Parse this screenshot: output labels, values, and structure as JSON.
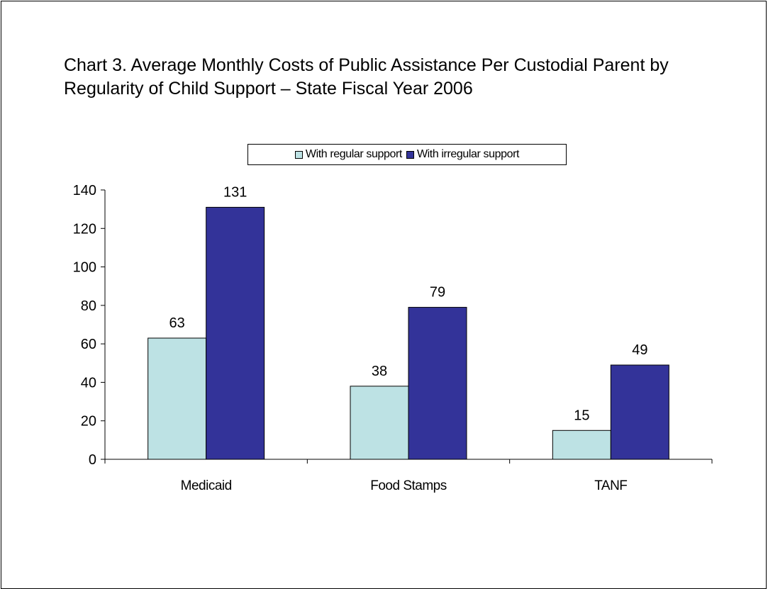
{
  "chart_data": {
    "type": "bar",
    "title": "Chart 3. Average Monthly Costs of Public Assistance Per Custodial Parent by Regularity of Child Support – State Fiscal Year 2006",
    "categories": [
      "Medicaid",
      "Food Stamps",
      "TANF"
    ],
    "series": [
      {
        "name": "With regular support",
        "values": [
          63,
          38,
          15
        ],
        "color": "#bde2e4"
      },
      {
        "name": "With irregular support",
        "values": [
          131,
          79,
          49
        ],
        "color": "#333399"
      }
    ],
    "xlabel": "",
    "ylabel": "",
    "ylim": [
      0,
      140
    ],
    "yticks": [
      0,
      20,
      40,
      60,
      80,
      100,
      120,
      140
    ],
    "grid": false,
    "legend": "top-center",
    "data_labels": true
  }
}
